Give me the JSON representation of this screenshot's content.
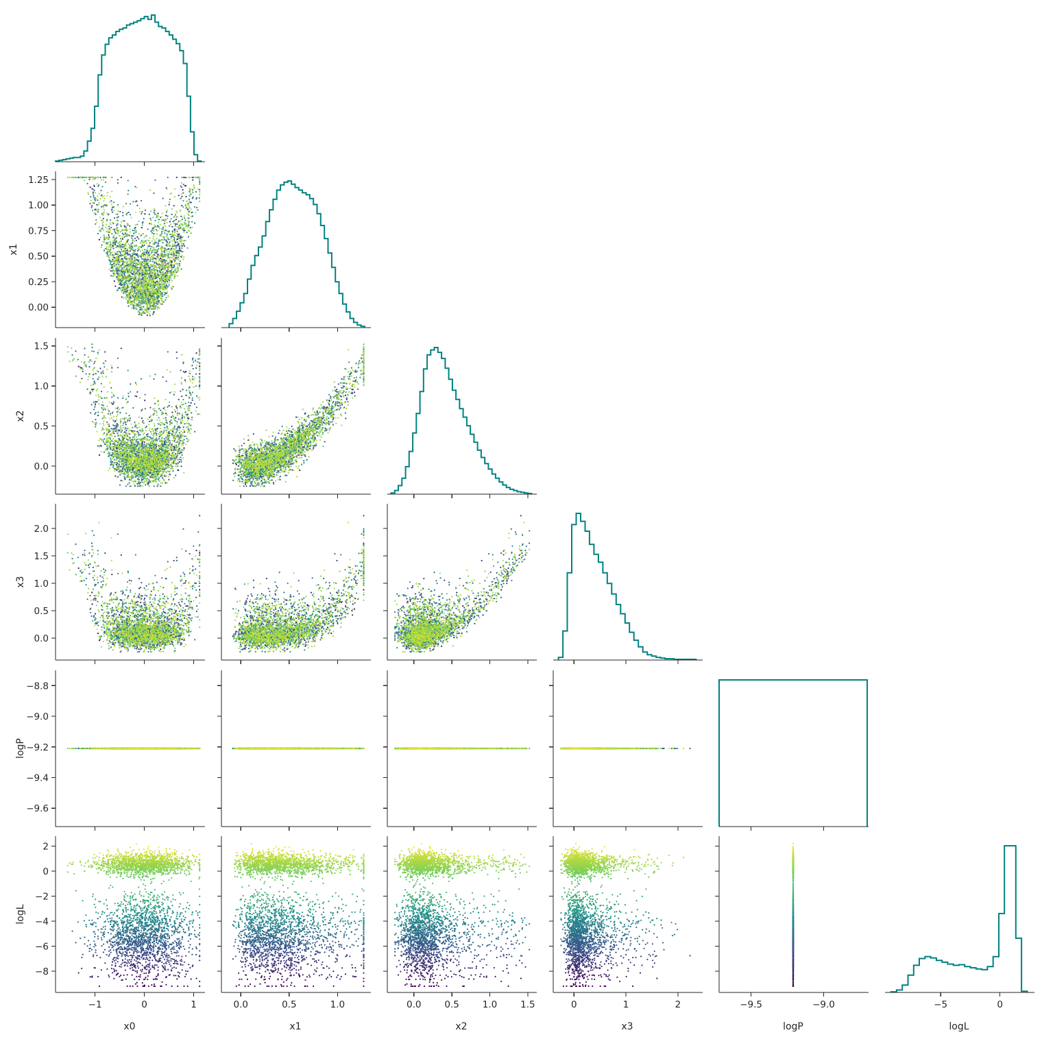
{
  "chart_data": {
    "type": "scatter",
    "layout": "corner-plot",
    "title": "",
    "variables": [
      "x0",
      "x1",
      "x2",
      "x3",
      "logP",
      "logL"
    ],
    "axis_labels": {
      "x0": "x0",
      "x1": "x1",
      "x2": "x2",
      "x3": "x3",
      "logP": "logP",
      "logL": "logL"
    },
    "ranges": {
      "x0": [
        -1.8,
        1.2
      ],
      "x1": [
        -0.2,
        1.33
      ],
      "x2": [
        -0.35,
        1.6
      ],
      "x3": [
        -0.4,
        2.45
      ],
      "logP": [
        -9.72,
        -8.7
      ],
      "logL": [
        -9.7,
        2.8
      ]
    },
    "ticks": {
      "x0": {
        "values": [
          -1,
          0,
          1
        ],
        "labels": [
          "−1",
          "0",
          "1"
        ]
      },
      "x1": {
        "values": [
          0.0,
          0.5,
          1.0
        ],
        "labels": [
          "0.0",
          "0.5",
          "1.0"
        ]
      },
      "x1_y": {
        "values": [
          0.0,
          0.25,
          0.5,
          0.75,
          1.0,
          1.25
        ],
        "labels": [
          "0.00",
          "0.25",
          "0.50",
          "0.75",
          "1.00",
          "1.25"
        ]
      },
      "x2": {
        "values": [
          0.0,
          0.5,
          1.0,
          1.5
        ],
        "labels": [
          "0.0",
          "0.5",
          "1.0",
          "1.5"
        ]
      },
      "x3": {
        "values": [
          0,
          1,
          2
        ],
        "labels": [
          "0",
          "1",
          "2"
        ]
      },
      "x3_y": {
        "values": [
          0.0,
          0.5,
          1.0,
          1.5,
          2.0
        ],
        "labels": [
          "0.0",
          "0.5",
          "1.0",
          "1.5",
          "2.0"
        ]
      },
      "logP": {
        "values": [
          -9.5,
          -9.0
        ],
        "labels": [
          "−9.5",
          "−9.0"
        ]
      },
      "logP_y": {
        "values": [
          -9.6,
          -9.4,
          -9.2,
          -9.0,
          -8.8
        ],
        "labels": [
          "−9.6",
          "−9.4",
          "−9.2",
          "−9.0",
          "−8.8"
        ]
      },
      "logL": {
        "values": [
          -5,
          0
        ],
        "labels": [
          "−5",
          "0"
        ]
      },
      "logL_y": {
        "values": [
          -8,
          -6,
          -4,
          -2,
          0,
          2
        ],
        "labels": [
          "−8",
          "−6",
          "−4",
          "−2",
          "0",
          "2"
        ]
      }
    },
    "color_by": "logL",
    "colormap": [
      "#440154",
      "#3b528b",
      "#21918c",
      "#5ec962",
      "#fde725"
    ],
    "hist_color": "#008080",
    "logP_constant": -9.21,
    "marginals": {
      "x0": {
        "edges": [
          -1.8,
          1.15
        ],
        "counts": [
          1,
          2,
          3,
          4,
          5,
          6,
          6,
          8,
          15,
          29,
          47,
          78,
          122,
          150,
          165,
          174,
          178,
          183,
          186,
          188,
          192,
          194,
          196,
          198,
          201,
          204,
          200,
          206,
          196,
          190,
          188,
          183,
          178,
          172,
          166,
          156,
          138,
          92,
          42,
          10,
          1
        ]
      },
      "x1": {
        "edges": [
          -0.12,
          1.28
        ],
        "counts": [
          6,
          14,
          25,
          38,
          52,
          74,
          95,
          110,
          123,
          140,
          162,
          180,
          196,
          210,
          218,
          222,
          224,
          219,
          214,
          210,
          206,
          203,
          197,
          188,
          174,
          156,
          136,
          114,
          92,
          70,
          52,
          36,
          24,
          14,
          8,
          4,
          2
        ]
      },
      "x2": {
        "edges": [
          -0.3,
          1.55
        ],
        "counts": [
          2,
          6,
          14,
          26,
          45,
          70,
          100,
          132,
          168,
          205,
          228,
          236,
          240,
          232,
          222,
          206,
          188,
          170,
          155,
          140,
          126,
          112,
          98,
          85,
          72,
          60,
          50,
          41,
          33,
          26,
          20,
          15,
          11,
          8,
          6,
          4,
          3,
          2,
          1
        ]
      },
      "x3": {
        "edges": [
          -0.3,
          2.35
        ],
        "counts": [
          4,
          44,
          132,
          205,
          222,
          210,
          195,
          175,
          160,
          148,
          132,
          116,
          100,
          84,
          70,
          56,
          42,
          30,
          20,
          12,
          8,
          6,
          4,
          3,
          2,
          2,
          1,
          1,
          1,
          1,
          1
        ]
      },
      "logP": {
        "edges": [
          -9.72,
          -8.7
        ],
        "counts": [
          1
        ]
      },
      "logL": {
        "edges": [
          -9.2,
          2.3
        ],
        "counts": [
          1,
          4,
          12,
          28,
          44,
          55,
          58,
          56,
          52,
          49,
          46,
          44,
          45,
          42,
          40,
          38,
          37,
          42,
          58,
          128,
          238,
          238,
          88,
          2
        ]
      }
    }
  }
}
